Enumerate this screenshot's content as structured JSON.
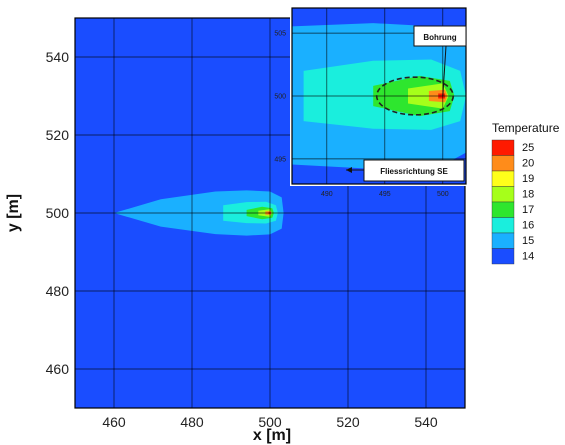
{
  "chart_data": {
    "type": "heatmap",
    "xlabel": "x [m]",
    "ylabel": "y [m]",
    "xlim": [
      450,
      550
    ],
    "ylim": [
      450,
      550
    ],
    "xticks": [
      460,
      480,
      500,
      520,
      540
    ],
    "yticks": [
      460,
      480,
      500,
      520,
      540
    ],
    "grid": true,
    "legend": {
      "title": "Temperature",
      "placement": "right",
      "levels": [
        {
          "label": "25",
          "color": "#ff1a00"
        },
        {
          "label": "20",
          "color": "#ff8c1a"
        },
        {
          "label": "19",
          "color": "#ffff1a"
        },
        {
          "label": "18",
          "color": "#a6ff1a"
        },
        {
          "label": "17",
          "color": "#2ee62e"
        },
        {
          "label": "16",
          "color": "#1aeedd"
        },
        {
          "label": "15",
          "color": "#1ab0ff"
        },
        {
          "label": "14",
          "color": "#1a4dff"
        }
      ]
    },
    "background_level": 14,
    "plumes": [
      {
        "level": 15,
        "color": "#1ab0ff",
        "points": [
          [
            460,
            500
          ],
          [
            472,
            503.5
          ],
          [
            486,
            505.5
          ],
          [
            494,
            505.8
          ],
          [
            500,
            505.5
          ],
          [
            503,
            504
          ],
          [
            503.5,
            500
          ],
          [
            503,
            496
          ],
          [
            500,
            494.5
          ],
          [
            494,
            494.2
          ],
          [
            486,
            494.6
          ],
          [
            472,
            496.5
          ]
        ]
      },
      {
        "level": 16,
        "color": "#1aeedd",
        "points": [
          [
            488,
            502
          ],
          [
            494,
            502.8
          ],
          [
            499,
            502.9
          ],
          [
            501.5,
            502
          ],
          [
            502,
            500
          ],
          [
            501.5,
            498
          ],
          [
            499,
            497.3
          ],
          [
            494,
            497.4
          ],
          [
            488,
            498
          ]
        ]
      },
      {
        "level": 17,
        "color": "#2ee62e",
        "points": [
          [
            494,
            500.8
          ],
          [
            498,
            501.6
          ],
          [
            500.6,
            501.2
          ],
          [
            501,
            500
          ],
          [
            500.6,
            498.8
          ],
          [
            498,
            498.4
          ],
          [
            494,
            499.2
          ]
        ]
      },
      {
        "level": 18,
        "color": "#a6ff1a",
        "points": [
          [
            497,
            500.6
          ],
          [
            500,
            501
          ],
          [
            500.5,
            500
          ],
          [
            500,
            499
          ],
          [
            497,
            499.4
          ]
        ]
      },
      {
        "level": 20,
        "color": "#ff8c1a",
        "points": [
          [
            498.8,
            500.4
          ],
          [
            500.2,
            500.5
          ],
          [
            500.4,
            500
          ],
          [
            500.2,
            499.5
          ],
          [
            498.8,
            499.6
          ]
        ]
      },
      {
        "level": 25,
        "color": "#ff1a00",
        "points": [
          [
            499.6,
            500.2
          ],
          [
            500.2,
            500.2
          ],
          [
            500.2,
            499.8
          ],
          [
            499.6,
            499.8
          ]
        ]
      }
    ],
    "inset": {
      "xlim": [
        487,
        502
      ],
      "ylim": [
        493,
        507
      ],
      "xticks": [
        490,
        495,
        500
      ],
      "yticks": [
        495,
        500,
        505
      ],
      "annotations": {
        "well_label": "Bohrung",
        "flow_label": "Fliessrichtung SE"
      }
    },
    "colors": {
      "level_14": "#1a4dff",
      "grid": "#000000"
    }
  }
}
